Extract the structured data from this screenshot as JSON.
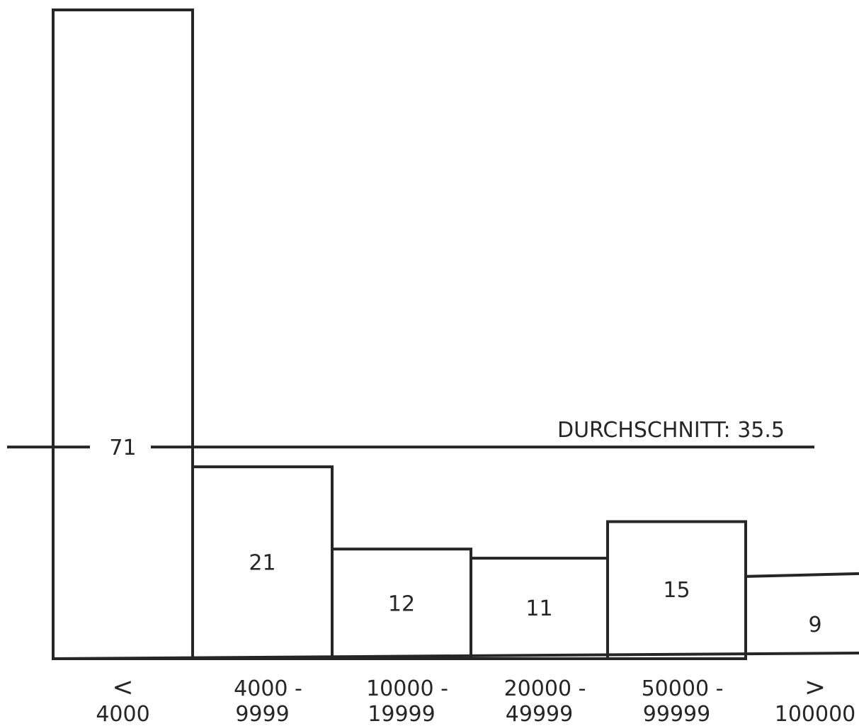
{
  "chart_data": {
    "type": "bar",
    "categories": [
      [
        "<",
        "4000"
      ],
      [
        "4000 -",
        "9999"
      ],
      [
        "10000 -",
        "19999"
      ],
      [
        "20000 -",
        "49999"
      ],
      [
        "50000 -",
        "99999"
      ],
      [
        ">",
        "100000"
      ]
    ],
    "values": [
      71,
      21,
      12,
      11,
      15,
      9
    ],
    "value_labels": [
      "71",
      "21",
      "12",
      "11",
      "15",
      "9"
    ],
    "reference_line": {
      "label": "DURCHSCHNITT: 35.5"
    },
    "title": "",
    "xlabel": "",
    "ylabel": "",
    "grid": false,
    "legend": "none"
  }
}
